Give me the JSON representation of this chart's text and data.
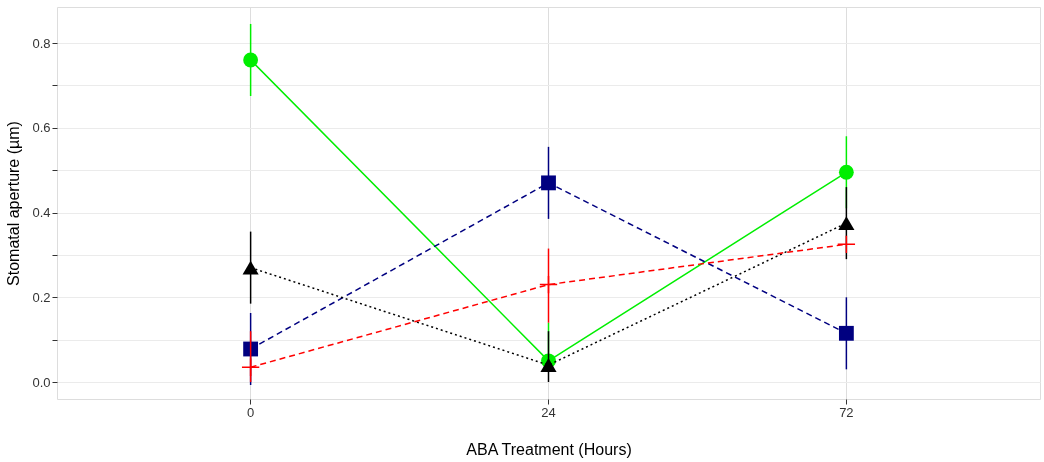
{
  "chart_data": {
    "type": "line",
    "xlabel": "ABA Treatment (Hours)",
    "ylabel": "Stomatal aperture (µm)",
    "categories": [
      "0",
      "24",
      "72"
    ],
    "ylim": [
      -0.04,
      0.885
    ],
    "yticks": [
      {
        "value": 0,
        "label": "0.0"
      },
      {
        "value": 0.1,
        "label": null
      },
      {
        "value": 0.2,
        "label": "0.2"
      },
      {
        "value": 0.3,
        "label": null
      },
      {
        "value": 0.4,
        "label": "0.4"
      },
      {
        "value": 0.5,
        "label": null
      },
      {
        "value": 0.6,
        "label": "0.6"
      },
      {
        "value": 0.7,
        "label": null
      },
      {
        "value": 0.8,
        "label": "0.8"
      }
    ],
    "grid": true,
    "series": [
      {
        "color": "#00ee00",
        "marker": "circle",
        "line_style": "solid",
        "values": [
          0.76,
          0.05,
          0.495
        ],
        "errors": [
          0.085,
          [
            0.05,
            0.14
          ],
          0.085
        ]
      },
      {
        "color": "#000080",
        "marker": "square",
        "line_style": "dashed",
        "values": [
          0.078,
          0.47,
          0.115
        ],
        "errors": [
          0.085,
          0.085,
          [
            0.03,
            0.2
          ]
        ]
      },
      {
        "color": "#000000",
        "marker": "triangle",
        "line_style": "dotted",
        "values": [
          0.27,
          0.04,
          0.375
        ],
        "errors": [
          0.085,
          [
            0.0,
            0.12
          ],
          0.085
        ]
      },
      {
        "color": "#ff0000",
        "marker": "cross",
        "line_style": "dashed",
        "values": [
          0.035,
          0.23,
          0.325
        ],
        "errors": [
          [
            0.0,
            0.12
          ],
          [
            0.14,
            0.315
          ],
          null
        ]
      }
    ]
  }
}
